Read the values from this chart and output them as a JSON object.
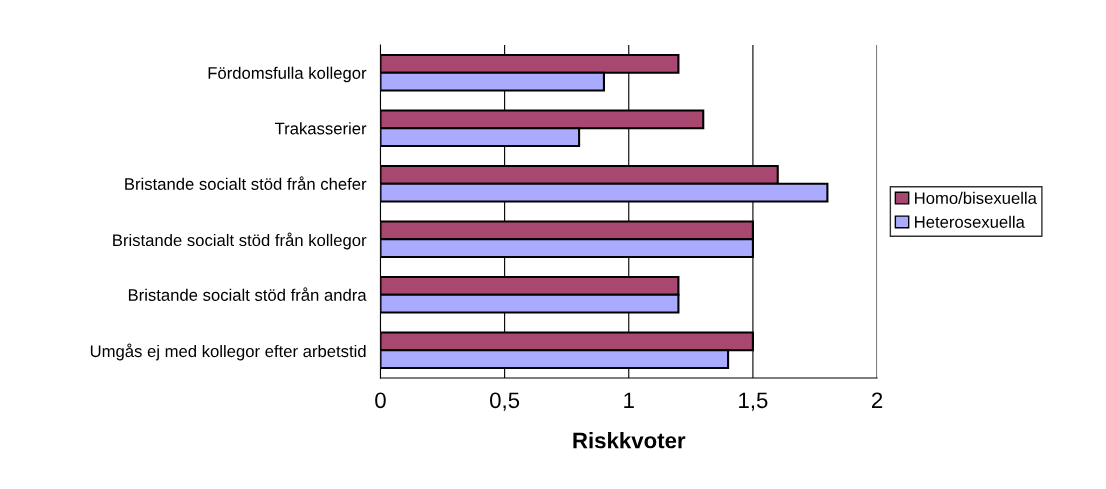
{
  "chart_data": {
    "type": "bar",
    "orientation": "horizontal",
    "xlabel": "Riskkvoter",
    "categories": [
      "Fördomsfulla kollegor",
      "Trakasserier",
      "Bristande socialt stöd från chefer",
      "Bristande socialt stöd från kollegor",
      "Bristande socialt stöd från andra",
      "Umgås ej med kollegor efter arbetstid"
    ],
    "series": [
      {
        "name": "Homo/bisexuella",
        "color": "#a8476f",
        "values": [
          1.2,
          1.3,
          1.6,
          1.5,
          1.2,
          1.5
        ]
      },
      {
        "name": "Heterosexuella",
        "color": "#aaaaff",
        "values": [
          0.9,
          0.8,
          1.8,
          1.5,
          1.2,
          1.4
        ]
      }
    ],
    "xlim": [
      0,
      2
    ],
    "xticks": [
      0,
      {
        "value": 0.5,
        "label": "0,5"
      },
      1,
      {
        "value": 1.5,
        "label": "1,5"
      },
      2
    ],
    "grid": "x",
    "legend": "right"
  }
}
